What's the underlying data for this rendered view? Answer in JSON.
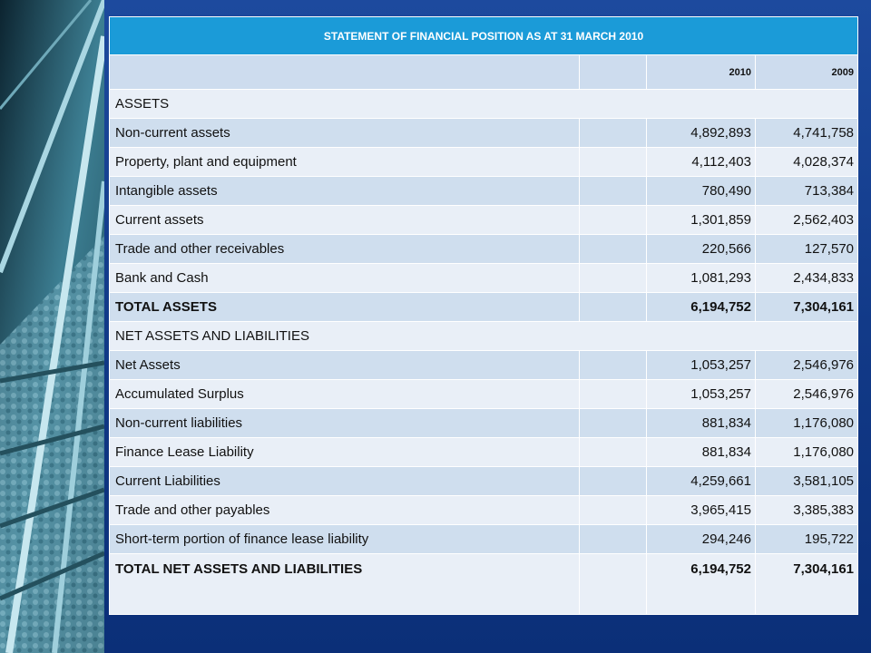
{
  "table": {
    "title": "STATEMENT OF FINANCIAL POSITION AS AT 31 MARCH 2010",
    "columns": [
      "2010",
      "2009"
    ],
    "rows": [
      {
        "cells": [
          "ASSETS"
        ]
      },
      {
        "cells": [
          "Non-current assets",
          "4,892,893",
          "4,741,758"
        ]
      },
      {
        "cells": [
          "Property, plant and  equipment",
          "4,112,403",
          "4,028,374"
        ]
      },
      {
        "cells": [
          "Intangible assets",
          "780,490",
          "713,384"
        ]
      },
      {
        "cells": [
          "Current assets",
          "1,301,859",
          "2,562,403"
        ]
      },
      {
        "cells": [
          "Trade and other receivables",
          "220,566",
          "127,570"
        ]
      },
      {
        "cells": [
          "Bank and Cash",
          "1,081,293",
          "2,434,833"
        ]
      },
      {
        "cells": [
          "TOTAL ASSETS",
          "6,194,752",
          "7,304,161"
        ],
        "bold": true
      },
      {
        "cells": [
          "NET ASSETS AND LIABILITIES"
        ]
      },
      {
        "cells": [
          "Net Assets",
          "1,053,257",
          "2,546,976"
        ]
      },
      {
        "cells": [
          "Accumulated Surplus",
          "1,053,257",
          "2,546,976"
        ]
      },
      {
        "cells": [
          "Non-current liabilities",
          "881,834",
          "1,176,080"
        ]
      },
      {
        "cells": [
          "Finance Lease Liability",
          "881,834",
          "1,176,080"
        ]
      },
      {
        "cells": [
          "Current Liabilities",
          "4,259,661",
          "3,581,105"
        ]
      },
      {
        "cells": [
          "Trade and other payables",
          "3,965,415",
          "3,385,383"
        ]
      },
      {
        "cells": [
          "Short-term portion of finance lease liability",
          "294,246",
          "195,722"
        ]
      },
      {
        "cells": [
          "TOTAL NET ASSETS AND LIABILITIES",
          "6,194,752",
          "7,304,161"
        ],
        "bold": true
      }
    ]
  }
}
